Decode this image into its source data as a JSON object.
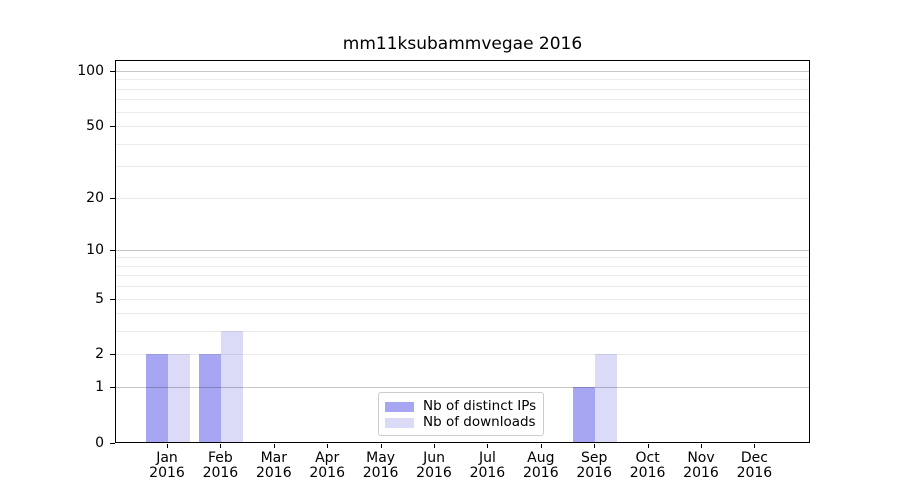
{
  "chart_data": {
    "type": "bar",
    "title": "mm11ksubammvegae 2016",
    "xlabel": "",
    "ylabel": "",
    "categories": [
      {
        "month": "Jan",
        "year": "2016"
      },
      {
        "month": "Feb",
        "year": "2016"
      },
      {
        "month": "Mar",
        "year": "2016"
      },
      {
        "month": "Apr",
        "year": "2016"
      },
      {
        "month": "May",
        "year": "2016"
      },
      {
        "month": "Jun",
        "year": "2016"
      },
      {
        "month": "Jul",
        "year": "2016"
      },
      {
        "month": "Aug",
        "year": "2016"
      },
      {
        "month": "Sep",
        "year": "2016"
      },
      {
        "month": "Oct",
        "year": "2016"
      },
      {
        "month": "Nov",
        "year": "2016"
      },
      {
        "month": "Dec",
        "year": "2016"
      }
    ],
    "series": [
      {
        "name": "Nb of distinct IPs",
        "color": "#a6a6f2",
        "values": [
          2,
          2,
          0,
          0,
          0,
          0,
          0,
          0,
          1,
          0,
          0,
          0
        ]
      },
      {
        "name": "Nb of downloads",
        "color": "#dbdbf8",
        "values": [
          2,
          3,
          0,
          0,
          0,
          0,
          0,
          0,
          2,
          0,
          0,
          0
        ]
      }
    ],
    "yscale": "log1p",
    "ylim": [
      0,
      115
    ],
    "yticks": [
      0,
      1,
      2,
      5,
      10,
      20,
      50,
      100
    ],
    "grid": {
      "major": [
        1,
        10,
        100
      ],
      "minor": [
        2,
        3,
        4,
        5,
        6,
        7,
        8,
        9,
        20,
        30,
        40,
        50,
        60,
        70,
        80,
        90
      ],
      "major_color": "#c7c7c7",
      "minor_color": "#ebebeb"
    },
    "legend": {
      "position": "lower center",
      "entries": [
        "Nb of distinct IPs",
        "Nb of downloads"
      ]
    }
  }
}
